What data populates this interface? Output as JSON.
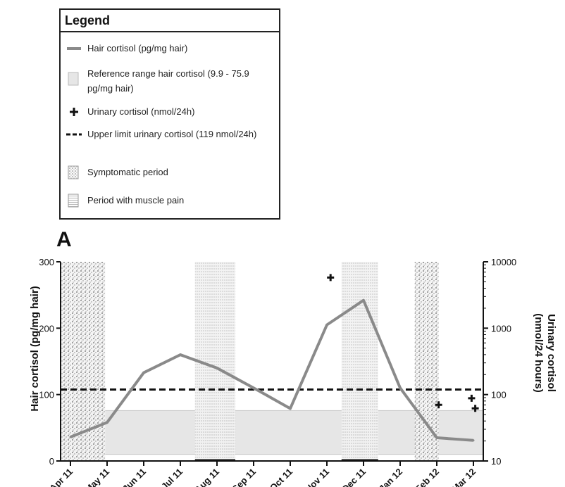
{
  "legend": {
    "title": "Legend",
    "items": [
      {
        "symbol": "gray-line",
        "text": "Hair cortisol (pg/mg hair)"
      },
      {
        "symbol": "gray-box",
        "text": "Reference range hair cortisol (9.9 - 75.9 pg/mg hair)"
      },
      {
        "symbol": "plus",
        "text": "Urinary cortisol (nmol/24h)"
      },
      {
        "symbol": "dashed-line",
        "text": "Upper limit urinary cortisol (119 nmol/24h)"
      },
      {
        "symbol": "dotted-box",
        "text": "Symptomatic period"
      },
      {
        "symbol": "hatched-box",
        "text": "Period with muscle pain"
      }
    ]
  },
  "chart_data": {
    "type": "line",
    "panel_label": "A",
    "categories": [
      "Apr 11",
      "May 11",
      "Jun 11",
      "Jul 11",
      "Aug 11",
      "Sep 11",
      "Oct 11",
      "Nov 11",
      "Dec 11",
      "Jan 12",
      "Feb 12",
      "Mar 12"
    ],
    "ylabel_left": "Hair cortisol (pg/mg hair)",
    "ylabel_right": "Urinary cortisol (nmol/24 hours)",
    "y_left": {
      "min": 0,
      "max": 300,
      "ticks": [
        "0",
        "100",
        "200",
        "300"
      ]
    },
    "y_right": {
      "scale": "log",
      "min": 10,
      "max": 10000,
      "ticks": [
        "10",
        "100",
        "1000",
        "10000"
      ]
    },
    "series": [
      {
        "name": "Hair cortisol (pg/mg hair)",
        "axis": "left",
        "points": [
          [
            0,
            36
          ],
          [
            1,
            58
          ],
          [
            2,
            133
          ],
          [
            3,
            160
          ],
          [
            4,
            140
          ],
          [
            5,
            110
          ],
          [
            6,
            79
          ],
          [
            7,
            205
          ],
          [
            8,
            242
          ],
          [
            9,
            110
          ],
          [
            10,
            35
          ],
          [
            11,
            31
          ]
        ]
      },
      {
        "name": "Urinary cortisol (nmol/24h)",
        "axis": "right",
        "marker": "plus",
        "points": [
          [
            7.1,
            5800
          ],
          [
            10.05,
            70
          ],
          [
            10.95,
            88
          ],
          [
            11.05,
            62
          ]
        ]
      }
    ],
    "reference_range_left": [
      9.9,
      75.9
    ],
    "upper_limit_right": 119,
    "symptomatic_periods": [
      [
        -0.35,
        0.95
      ],
      [
        9.4,
        10.05
      ]
    ],
    "muscle_pain_periods": [
      [
        3.4,
        4.5
      ],
      [
        7.4,
        8.4
      ]
    ],
    "colors": {
      "line": "#8a8a8a",
      "reference": "#e6e6e6",
      "dashed": "#111111"
    }
  }
}
